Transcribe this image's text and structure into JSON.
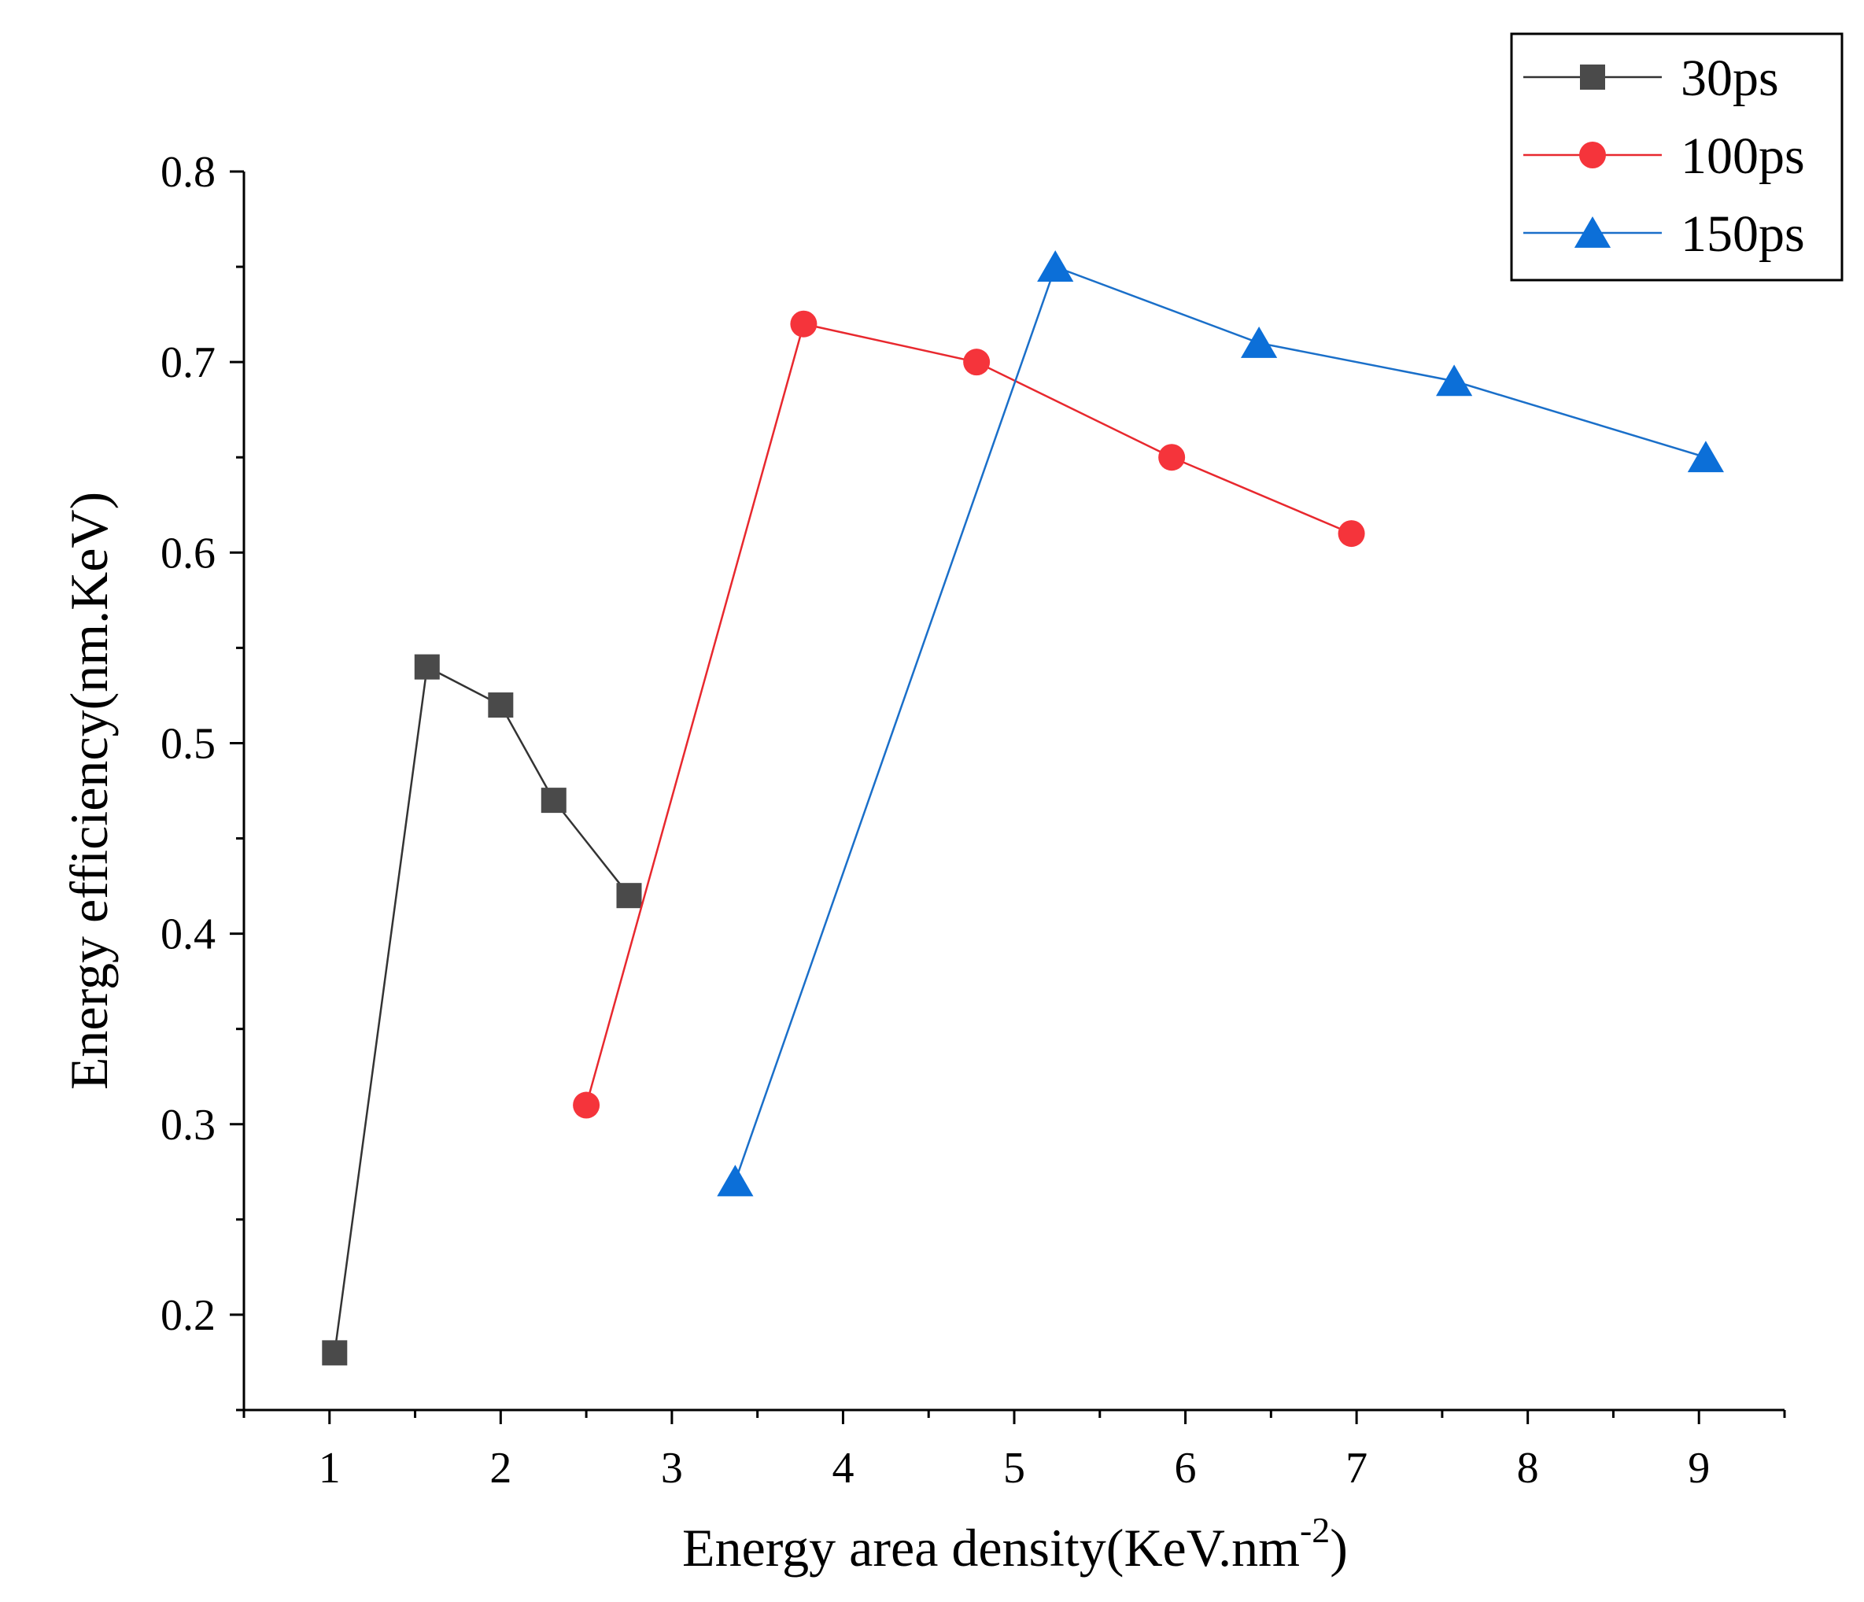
{
  "chart_data": {
    "type": "line",
    "title": "",
    "xlabel": "Energy area density(KeV.nm",
    "xlabel_sup": "-2",
    "xlabel_end": ")",
    "ylabel": "Energy efficiency(nm.KeV)",
    "xlim": [
      0.5,
      9.5
    ],
    "ylim": [
      0.15,
      0.8
    ],
    "xticks": [
      1,
      2,
      3,
      4,
      5,
      6,
      7,
      8,
      9
    ],
    "xtick_labels": [
      "1",
      "2",
      "3",
      "4",
      "5",
      "6",
      "7",
      "8",
      "9"
    ],
    "yticks": [
      0.2,
      0.3,
      0.4,
      0.5,
      0.6,
      0.7,
      0.8
    ],
    "ytick_labels": [
      "0.2",
      "0.3",
      "0.4",
      "0.5",
      "0.6",
      "0.7",
      "0.8"
    ],
    "grid": false,
    "legend_position": "top-right",
    "series": [
      {
        "name": "30ps",
        "marker": "square",
        "color": "#4a4a4a",
        "line_color": "#333333",
        "x": [
          1.03,
          1.57,
          2.0,
          2.31,
          2.75
        ],
        "y": [
          0.18,
          0.54,
          0.52,
          0.47,
          0.42
        ]
      },
      {
        "name": "100ps",
        "marker": "circle",
        "color": "#f5343b",
        "line_color": "#e8282e",
        "x": [
          2.5,
          3.77,
          4.78,
          5.92,
          6.97
        ],
        "y": [
          0.31,
          0.72,
          0.7,
          0.65,
          0.61
        ]
      },
      {
        "name": "150ps",
        "marker": "triangle",
        "color": "#0c6fd8",
        "line_color": "#1a6fc9",
        "x": [
          3.37,
          5.24,
          6.43,
          7.57,
          9.04
        ],
        "y": [
          0.27,
          0.75,
          0.71,
          0.69,
          0.65
        ]
      }
    ]
  }
}
